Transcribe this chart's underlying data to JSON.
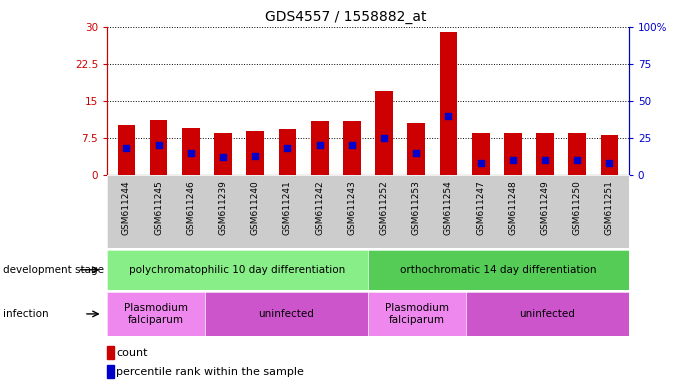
{
  "title": "GDS4557 / 1558882_at",
  "samples": [
    "GSM611244",
    "GSM611245",
    "GSM611246",
    "GSM611239",
    "GSM611240",
    "GSM611241",
    "GSM611242",
    "GSM611243",
    "GSM611252",
    "GSM611253",
    "GSM611254",
    "GSM611247",
    "GSM611248",
    "GSM611249",
    "GSM611250",
    "GSM611251"
  ],
  "count_values": [
    10.0,
    11.2,
    9.5,
    8.5,
    8.8,
    9.2,
    11.0,
    11.0,
    17.0,
    10.5,
    29.0,
    8.5,
    8.5,
    8.5,
    8.5,
    8.0
  ],
  "percentile_values": [
    18,
    20,
    15,
    12,
    13,
    18,
    20,
    20,
    25,
    15,
    40,
    8,
    10,
    10,
    10,
    8
  ],
  "ylim_left": [
    0,
    30
  ],
  "ylim_right": [
    0,
    100
  ],
  "yticks_left": [
    0,
    7.5,
    15,
    22.5,
    30
  ],
  "yticks_right": [
    0,
    25,
    50,
    75,
    100
  ],
  "ytick_labels_left": [
    "0",
    "7.5",
    "15",
    "22.5",
    "30"
  ],
  "ytick_labels_right": [
    "0",
    "25",
    "50",
    "75",
    "100%"
  ],
  "bar_color": "#cc0000",
  "dot_color": "#0000cc",
  "title_fontsize": 10,
  "development_stage_label": "development stage",
  "infection_label": "infection",
  "stage_groups": [
    {
      "label": "polychromatophilic 10 day differentiation",
      "start": 0,
      "end": 8,
      "color": "#88ee88"
    },
    {
      "label": "orthochromatic 14 day differentiation",
      "start": 8,
      "end": 16,
      "color": "#55cc55"
    }
  ],
  "infection_groups": [
    {
      "label": "Plasmodium\nfalciparum",
      "start": 0,
      "end": 3,
      "color": "#ee88ee"
    },
    {
      "label": "uninfected",
      "start": 3,
      "end": 8,
      "color": "#cc55cc"
    },
    {
      "label": "Plasmodium\nfalciparum",
      "start": 8,
      "end": 11,
      "color": "#ee88ee"
    },
    {
      "label": "uninfected",
      "start": 11,
      "end": 16,
      "color": "#cc55cc"
    }
  ],
  "legend_count_label": "count",
  "legend_percentile_label": "percentile rank within the sample",
  "tick_bg_color": "#cccccc",
  "bar_width": 0.55,
  "dot_size": 18
}
